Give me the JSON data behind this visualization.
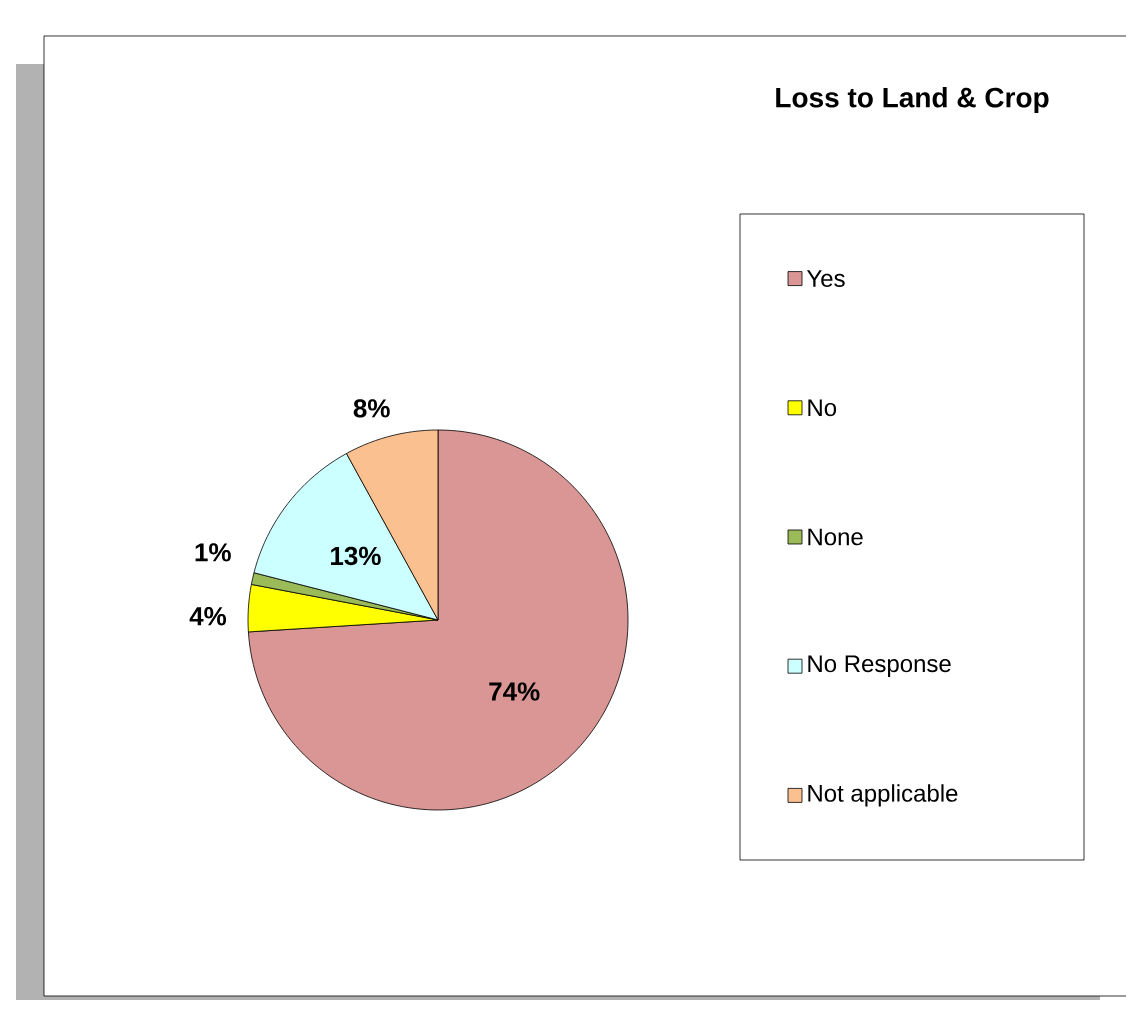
{
  "chart_data": {
    "type": "pie",
    "title": "Loss to Land & Crop",
    "categories": [
      "Yes",
      "No",
      "None",
      "No Response",
      "Not applicable"
    ],
    "values": [
      74,
      4,
      1,
      13,
      8
    ],
    "value_labels": [
      "74%",
      "4%",
      "1%",
      "13%",
      "8%"
    ],
    "colors": [
      "#da9694",
      "#ffff00",
      "#9bbb59",
      "#ccffff",
      "#fac090"
    ],
    "legend": "right"
  }
}
